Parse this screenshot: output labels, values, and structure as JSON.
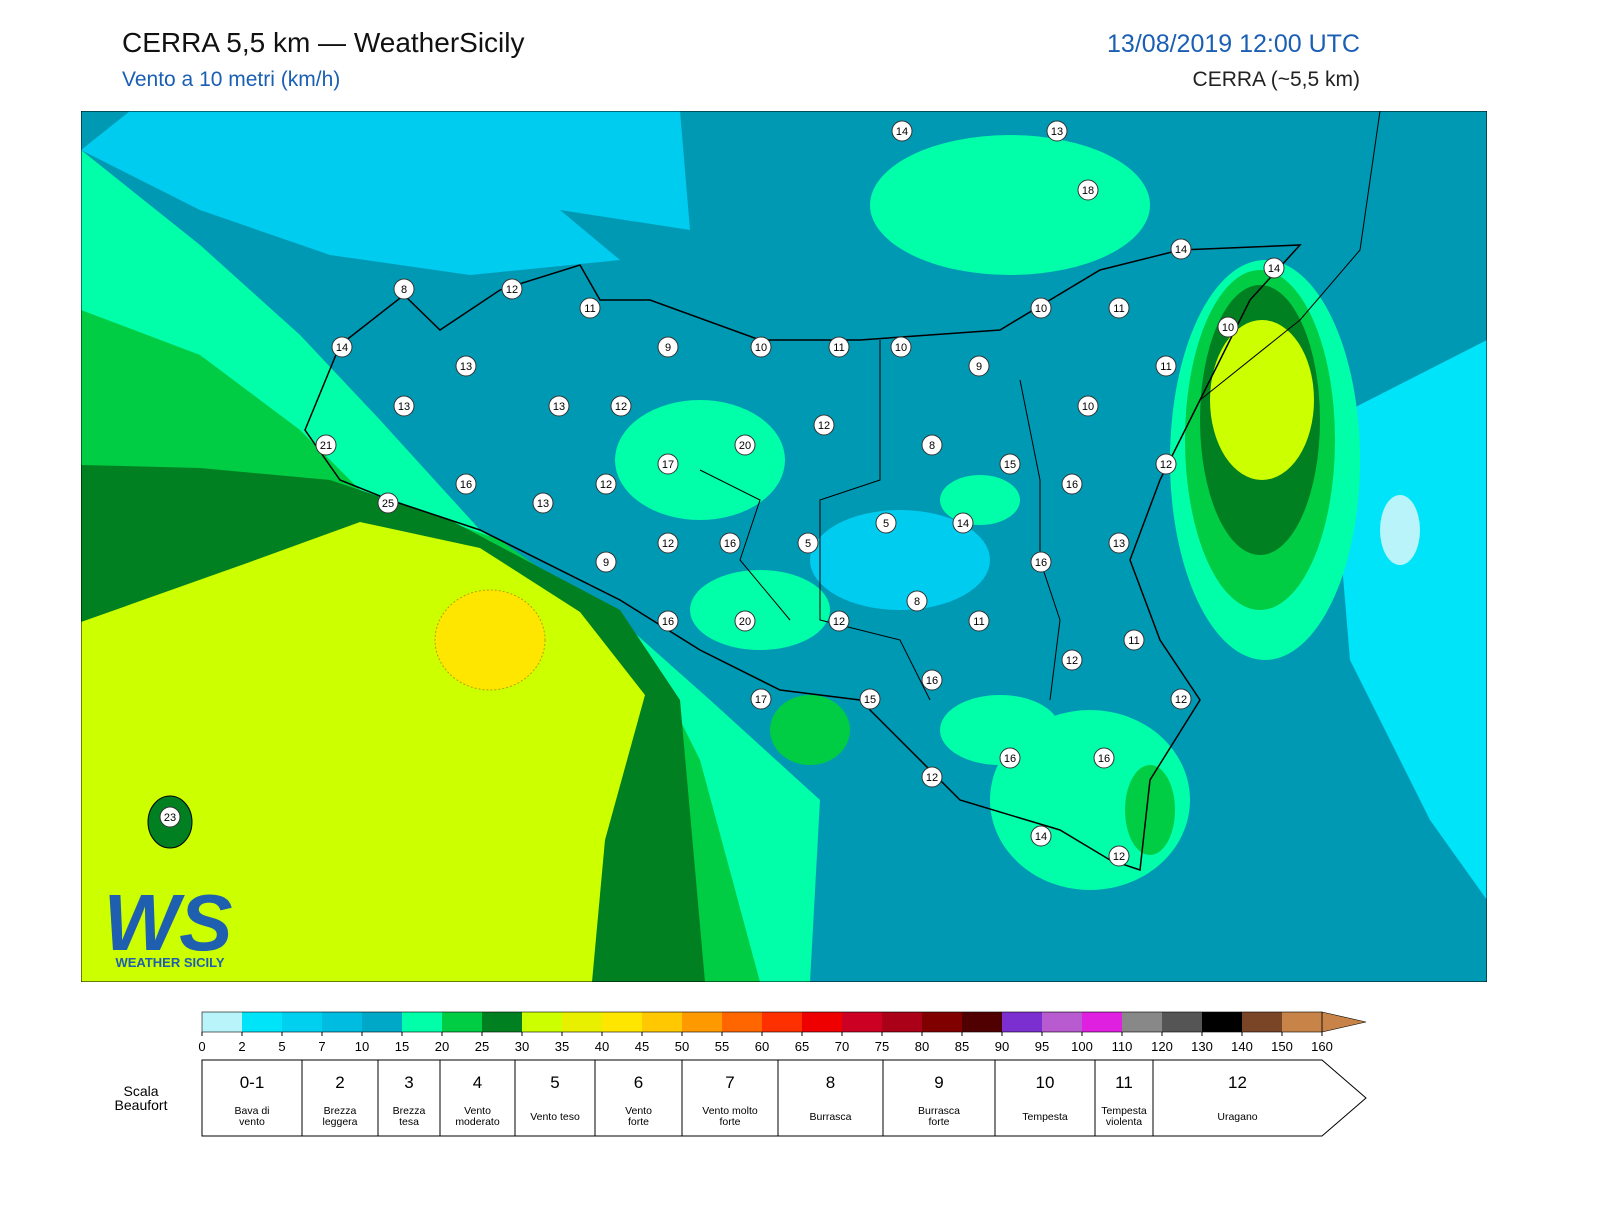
{
  "header": {
    "title": "CERRA 5,5 km — WeatherSicily",
    "subtitle": "Vento a 10 metri (km/h)",
    "datetime": "13/08/2019 12:00 UTC",
    "model": "CERRA (~5,5 km)"
  },
  "logo": {
    "mark": "WS",
    "name": "WEATHER SICILY"
  },
  "stations": [
    14,
    13,
    18,
    14,
    14,
    8,
    12,
    11,
    10,
    11,
    10,
    14,
    9,
    10,
    11,
    10,
    13,
    9,
    11,
    13,
    13,
    12,
    10,
    12,
    21,
    20,
    8,
    17,
    15,
    12,
    16,
    12,
    16,
    25,
    13,
    5,
    14,
    12,
    16,
    5,
    13,
    9,
    16,
    8,
    16,
    20,
    12,
    11,
    11,
    12,
    16,
    17,
    15,
    12,
    16,
    16,
    12,
    23,
    14,
    12
  ],
  "colorbar": {
    "ticks": [
      0,
      2,
      5,
      7,
      10,
      15,
      20,
      25,
      30,
      35,
      40,
      45,
      50,
      55,
      60,
      65,
      70,
      75,
      80,
      85,
      90,
      95,
      100,
      110,
      120,
      130,
      140,
      150,
      160
    ],
    "colors": [
      "#b8f4fa",
      "#00e4fa",
      "#00d0f0",
      "#00bce0",
      "#00a8c8",
      "#00ffa8",
      "#00cc44",
      "#008020",
      "#ccff00",
      "#e8f000",
      "#ffe600",
      "#ffc800",
      "#ff9900",
      "#ff6600",
      "#ff3000",
      "#ee0000",
      "#cc0022",
      "#aa0018",
      "#800000",
      "#500000",
      "#7c2fd0",
      "#b85ad0",
      "#e020e0",
      "#888888",
      "#555555",
      "#000000",
      "#7a4426",
      "#c88448"
    ],
    "extend_color": "#c88448"
  },
  "beaufort": {
    "title": [
      "Scala",
      "Beaufort"
    ],
    "levels": [
      {
        "force": "0-1",
        "label": [
          "Bava di",
          "vento"
        ]
      },
      {
        "force": "2",
        "label": [
          "Brezza",
          "leggera"
        ]
      },
      {
        "force": "3",
        "label": [
          "Brezza",
          "tesa"
        ]
      },
      {
        "force": "4",
        "label": [
          "Vento",
          "moderato"
        ]
      },
      {
        "force": "5",
        "label": [
          "Vento teso"
        ]
      },
      {
        "force": "6",
        "label": [
          "Vento",
          "forte"
        ]
      },
      {
        "force": "7",
        "label": [
          "Vento molto",
          "forte"
        ]
      },
      {
        "force": "8",
        "label": [
          "Burrasca"
        ]
      },
      {
        "force": "9",
        "label": [
          "Burrasca",
          "forte"
        ]
      },
      {
        "force": "10",
        "label": [
          "Tempesta"
        ]
      },
      {
        "force": "11",
        "label": [
          "Tempesta",
          "violenta"
        ]
      },
      {
        "force": "12",
        "label": [
          "Uragano"
        ]
      }
    ]
  }
}
